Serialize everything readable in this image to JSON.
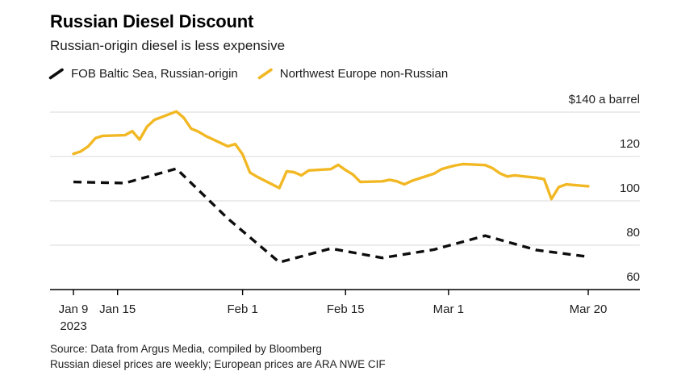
{
  "header": {
    "title": "Russian Diesel Discount",
    "subtitle": "Russian-origin diesel is less expensive"
  },
  "legend": [
    {
      "label": "FOB Baltic Sea, Russian-origin",
      "color": "#0d0d0d"
    },
    {
      "label": "Northwest Europe non-Russian",
      "color": "#f2b824"
    }
  ],
  "source": {
    "line1": "Source: Data from Argus Media, compiled by Bloomberg",
    "line2": "Russian diesel prices are weekly; European prices are ARA NWE CIF"
  },
  "colors": {
    "russian_line": "#0d0d0d",
    "european_line": "#f2b824",
    "gridline": "#d9d9d9",
    "axis": "#000000",
    "axis_text": "#1f1f1f"
  },
  "chart_data": {
    "type": "line",
    "title": "Russian Diesel Discount",
    "subtitle": "Russian-origin diesel is less expensive",
    "ylabel": "$140 a barrel",
    "ylim": [
      60,
      140
    ],
    "grid": "horizontal",
    "legend_position": "top-left",
    "y_ticks": [
      {
        "value": 140,
        "label": "$140 a barrel"
      },
      {
        "value": 120,
        "label": "120"
      },
      {
        "value": 100,
        "label": "100"
      },
      {
        "value": 80,
        "label": "80"
      },
      {
        "value": 60,
        "label": "60"
      }
    ],
    "x_ticks": [
      {
        "date": "2023-01-09",
        "label": "Jan 9",
        "sublabel": "2023"
      },
      {
        "date": "2023-01-15",
        "label": "Jan 15"
      },
      {
        "date": "2023-02-01",
        "label": "Feb 1"
      },
      {
        "date": "2023-02-15",
        "label": "Feb 15"
      },
      {
        "date": "2023-03-01",
        "label": "Mar 1"
      },
      {
        "date": "2023-03-20",
        "label": "Mar 20"
      }
    ],
    "series": [
      {
        "name": "Northwest Europe non-Russian",
        "frequency": "daily",
        "color": "#f2b824",
        "dash": null,
        "width": 3.4,
        "points": [
          [
            "2023-01-09",
            121.2
          ],
          [
            "2023-01-10",
            122.3
          ],
          [
            "2023-01-11",
            124.5
          ],
          [
            "2023-01-12",
            128.3
          ],
          [
            "2023-01-13",
            129.3
          ],
          [
            "2023-01-16",
            129.6
          ],
          [
            "2023-01-17",
            131.4
          ],
          [
            "2023-01-18",
            127.6
          ],
          [
            "2023-01-19",
            133.4
          ],
          [
            "2023-01-20",
            136.5
          ],
          [
            "2023-01-23",
            140.3
          ],
          [
            "2023-01-24",
            137.5
          ],
          [
            "2023-01-25",
            132.6
          ],
          [
            "2023-01-26",
            131.2
          ],
          [
            "2023-01-27",
            129.2
          ],
          [
            "2023-01-30",
            124.6
          ],
          [
            "2023-01-31",
            125.6
          ],
          [
            "2023-02-01",
            121.0
          ],
          [
            "2023-02-02",
            112.8
          ],
          [
            "2023-02-03",
            110.8
          ],
          [
            "2023-02-06",
            105.8
          ],
          [
            "2023-02-07",
            113.3
          ],
          [
            "2023-02-08",
            112.9
          ],
          [
            "2023-02-09",
            111.5
          ],
          [
            "2023-02-10",
            113.7
          ],
          [
            "2023-02-13",
            114.3
          ],
          [
            "2023-02-14",
            116.2
          ],
          [
            "2023-02-15",
            113.9
          ],
          [
            "2023-02-16",
            111.9
          ],
          [
            "2023-02-17",
            108.5
          ],
          [
            "2023-02-20",
            108.8
          ],
          [
            "2023-02-21",
            109.5
          ],
          [
            "2023-02-22",
            108.8
          ],
          [
            "2023-02-23",
            107.4
          ],
          [
            "2023-02-24",
            109.0
          ],
          [
            "2023-02-27",
            112.2
          ],
          [
            "2023-02-28",
            114.2
          ],
          [
            "2023-03-01",
            115.2
          ],
          [
            "2023-03-02",
            116.0
          ],
          [
            "2023-03-03",
            116.6
          ],
          [
            "2023-03-06",
            116.1
          ],
          [
            "2023-03-07",
            114.7
          ],
          [
            "2023-03-08",
            112.4
          ],
          [
            "2023-03-09",
            111.0
          ],
          [
            "2023-03-10",
            111.5
          ],
          [
            "2023-03-13",
            110.4
          ],
          [
            "2023-03-14",
            109.8
          ],
          [
            "2023-03-15",
            100.8
          ],
          [
            "2023-03-16",
            106.2
          ],
          [
            "2023-03-17",
            107.4
          ],
          [
            "2023-03-20",
            106.6
          ]
        ]
      },
      {
        "name": "FOB Baltic Sea, Russian-origin",
        "frequency": "weekly",
        "color": "#0d0d0d",
        "dash": "10 7",
        "width": 3.4,
        "points": [
          [
            "2023-01-09",
            108.5
          ],
          [
            "2023-01-16",
            108.0
          ],
          [
            "2023-01-23",
            114.5
          ],
          [
            "2023-01-30",
            92.0
          ],
          [
            "2023-02-06",
            72.3
          ],
          [
            "2023-02-13",
            78.5
          ],
          [
            "2023-02-20",
            74.3
          ],
          [
            "2023-02-27",
            78.0
          ],
          [
            "2023-03-06",
            84.3
          ],
          [
            "2023-03-13",
            77.8
          ],
          [
            "2023-03-20",
            74.8
          ]
        ]
      }
    ]
  }
}
